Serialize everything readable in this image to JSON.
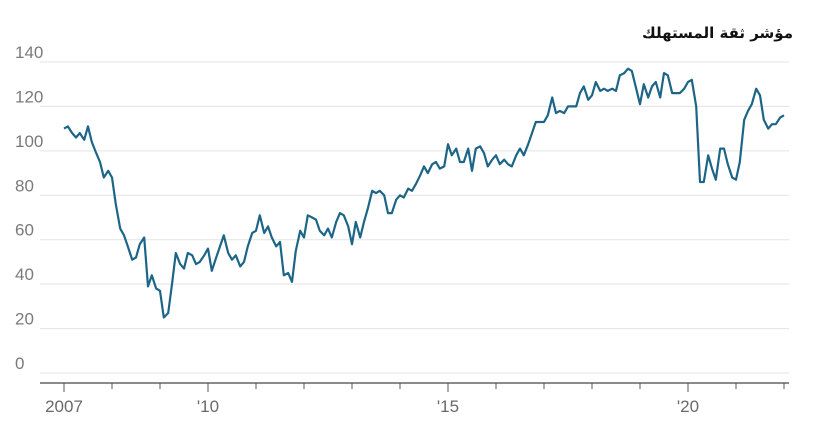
{
  "chart_data": {
    "type": "line",
    "title": "مؤشر ثقة المستهلك",
    "xlabel": "",
    "ylabel": "",
    "ylim": [
      0,
      140
    ],
    "yticks": [
      0,
      20,
      40,
      60,
      80,
      100,
      120,
      140
    ],
    "xlim": [
      2007.0,
      2022.1
    ],
    "xticks": [
      {
        "value": 2007,
        "label": "2007"
      },
      {
        "value": 2010,
        "label": "'10"
      },
      {
        "value": 2015,
        "label": "'15"
      },
      {
        "value": 2020,
        "label": "'20"
      }
    ],
    "grid": true,
    "series": [
      {
        "color": "#1c6587",
        "x": [
          2007.0,
          2007.08,
          2007.17,
          2007.25,
          2007.33,
          2007.42,
          2007.5,
          2007.58,
          2007.67,
          2007.75,
          2007.83,
          2007.92,
          2008.0,
          2008.08,
          2008.17,
          2008.25,
          2008.33,
          2008.42,
          2008.5,
          2008.58,
          2008.67,
          2008.75,
          2008.83,
          2008.92,
          2009.0,
          2009.08,
          2009.17,
          2009.25,
          2009.33,
          2009.42,
          2009.5,
          2009.58,
          2009.67,
          2009.75,
          2009.83,
          2009.92,
          2010.0,
          2010.08,
          2010.17,
          2010.25,
          2010.33,
          2010.42,
          2010.5,
          2010.58,
          2010.67,
          2010.75,
          2010.83,
          2010.92,
          2011.0,
          2011.08,
          2011.17,
          2011.25,
          2011.33,
          2011.42,
          2011.5,
          2011.58,
          2011.67,
          2011.75,
          2011.83,
          2011.92,
          2012.0,
          2012.08,
          2012.17,
          2012.25,
          2012.33,
          2012.42,
          2012.5,
          2012.58,
          2012.67,
          2012.75,
          2012.83,
          2012.92,
          2013.0,
          2013.08,
          2013.17,
          2013.25,
          2013.33,
          2013.42,
          2013.5,
          2013.58,
          2013.67,
          2013.75,
          2013.83,
          2013.92,
          2014.0,
          2014.08,
          2014.17,
          2014.25,
          2014.33,
          2014.42,
          2014.5,
          2014.58,
          2014.67,
          2014.75,
          2014.83,
          2014.92,
          2015.0,
          2015.08,
          2015.17,
          2015.25,
          2015.33,
          2015.42,
          2015.5,
          2015.58,
          2015.67,
          2015.75,
          2015.83,
          2015.92,
          2016.0,
          2016.08,
          2016.17,
          2016.25,
          2016.33,
          2016.42,
          2016.5,
          2016.58,
          2016.67,
          2016.75,
          2016.83,
          2016.92,
          2017.0,
          2017.08,
          2017.17,
          2017.25,
          2017.33,
          2017.42,
          2017.5,
          2017.58,
          2017.67,
          2017.75,
          2017.83,
          2017.92,
          2018.0,
          2018.08,
          2018.17,
          2018.25,
          2018.33,
          2018.42,
          2018.5,
          2018.58,
          2018.67,
          2018.75,
          2018.83,
          2018.92,
          2019.0,
          2019.08,
          2019.17,
          2019.25,
          2019.33,
          2019.42,
          2019.5,
          2019.58,
          2019.67,
          2019.75,
          2019.83,
          2019.92,
          2020.0,
          2020.08,
          2020.17,
          2020.25,
          2020.33,
          2020.42,
          2020.5,
          2020.58,
          2020.67,
          2020.75,
          2020.83,
          2020.92,
          2021.0,
          2021.08,
          2021.17,
          2021.25,
          2021.33,
          2021.42,
          2021.5,
          2021.58,
          2021.67,
          2021.75,
          2021.83,
          2021.92,
          2022.0
        ],
        "y": [
          110,
          111,
          108,
          106,
          108,
          105,
          111,
          104,
          99,
          95,
          88,
          91,
          88,
          76,
          65,
          62,
          57,
          51,
          52,
          58,
          61,
          39,
          44,
          38,
          37,
          25,
          27,
          40,
          54,
          49,
          47,
          54,
          53,
          49,
          50,
          53,
          56,
          46,
          52,
          57,
          62,
          54,
          51,
          53,
          48,
          50,
          57,
          63,
          64,
          71,
          63,
          66,
          61,
          57,
          59,
          44,
          45,
          41,
          55,
          64,
          61,
          71,
          70,
          69,
          64,
          62,
          65,
          61,
          68,
          72,
          71,
          66,
          58,
          68,
          61,
          68,
          74,
          82,
          81,
          82,
          80,
          72,
          72,
          78,
          80,
          79,
          83,
          82,
          85,
          89,
          93,
          90,
          94,
          95,
          92,
          93,
          103,
          98,
          101,
          95,
          95,
          101,
          91,
          101,
          102,
          99,
          93,
          96,
          98,
          94,
          96,
          94,
          93,
          98,
          101,
          98,
          103,
          108,
          113,
          113,
          113,
          116,
          124,
          117,
          118,
          117,
          120,
          120,
          120,
          126,
          129,
          123,
          125,
          131,
          127,
          128,
          127,
          128,
          127,
          134,
          135,
          137,
          136,
          128,
          121,
          130,
          124,
          129,
          131,
          124,
          135,
          134,
          126,
          126,
          126,
          128,
          131,
          132,
          120,
          86,
          86,
          98,
          92,
          87,
          101,
          101,
          94,
          88,
          87,
          95,
          114,
          118,
          121,
          128,
          125,
          114,
          110,
          112,
          112,
          115,
          116
        ]
      }
    ]
  }
}
